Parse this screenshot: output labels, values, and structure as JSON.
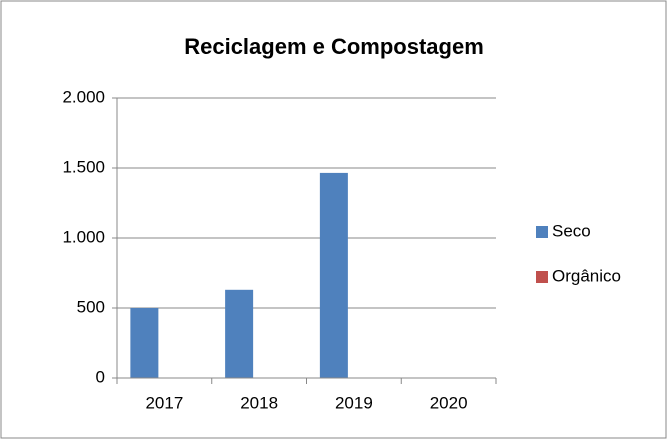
{
  "chart_data": {
    "type": "bar",
    "title": "Reciclagem e Compostagem",
    "categories": [
      "2017",
      "2018",
      "2019",
      "2020"
    ],
    "series": [
      {
        "name": "Seco",
        "color": "#4f81bd",
        "values": [
          500,
          630,
          1465,
          0
        ]
      },
      {
        "name": "Orgânico",
        "color": "#c0504d",
        "values": [
          0,
          0,
          0,
          0
        ]
      }
    ],
    "ylim": [
      0,
      2000
    ],
    "yticks": [
      0,
      500,
      {
        "value": 1000,
        "label": "1.000"
      },
      {
        "value": 1500,
        "label": "1.500"
      },
      {
        "value": 2000,
        "label": "2.000"
      }
    ],
    "grid": true,
    "legend": "right"
  }
}
